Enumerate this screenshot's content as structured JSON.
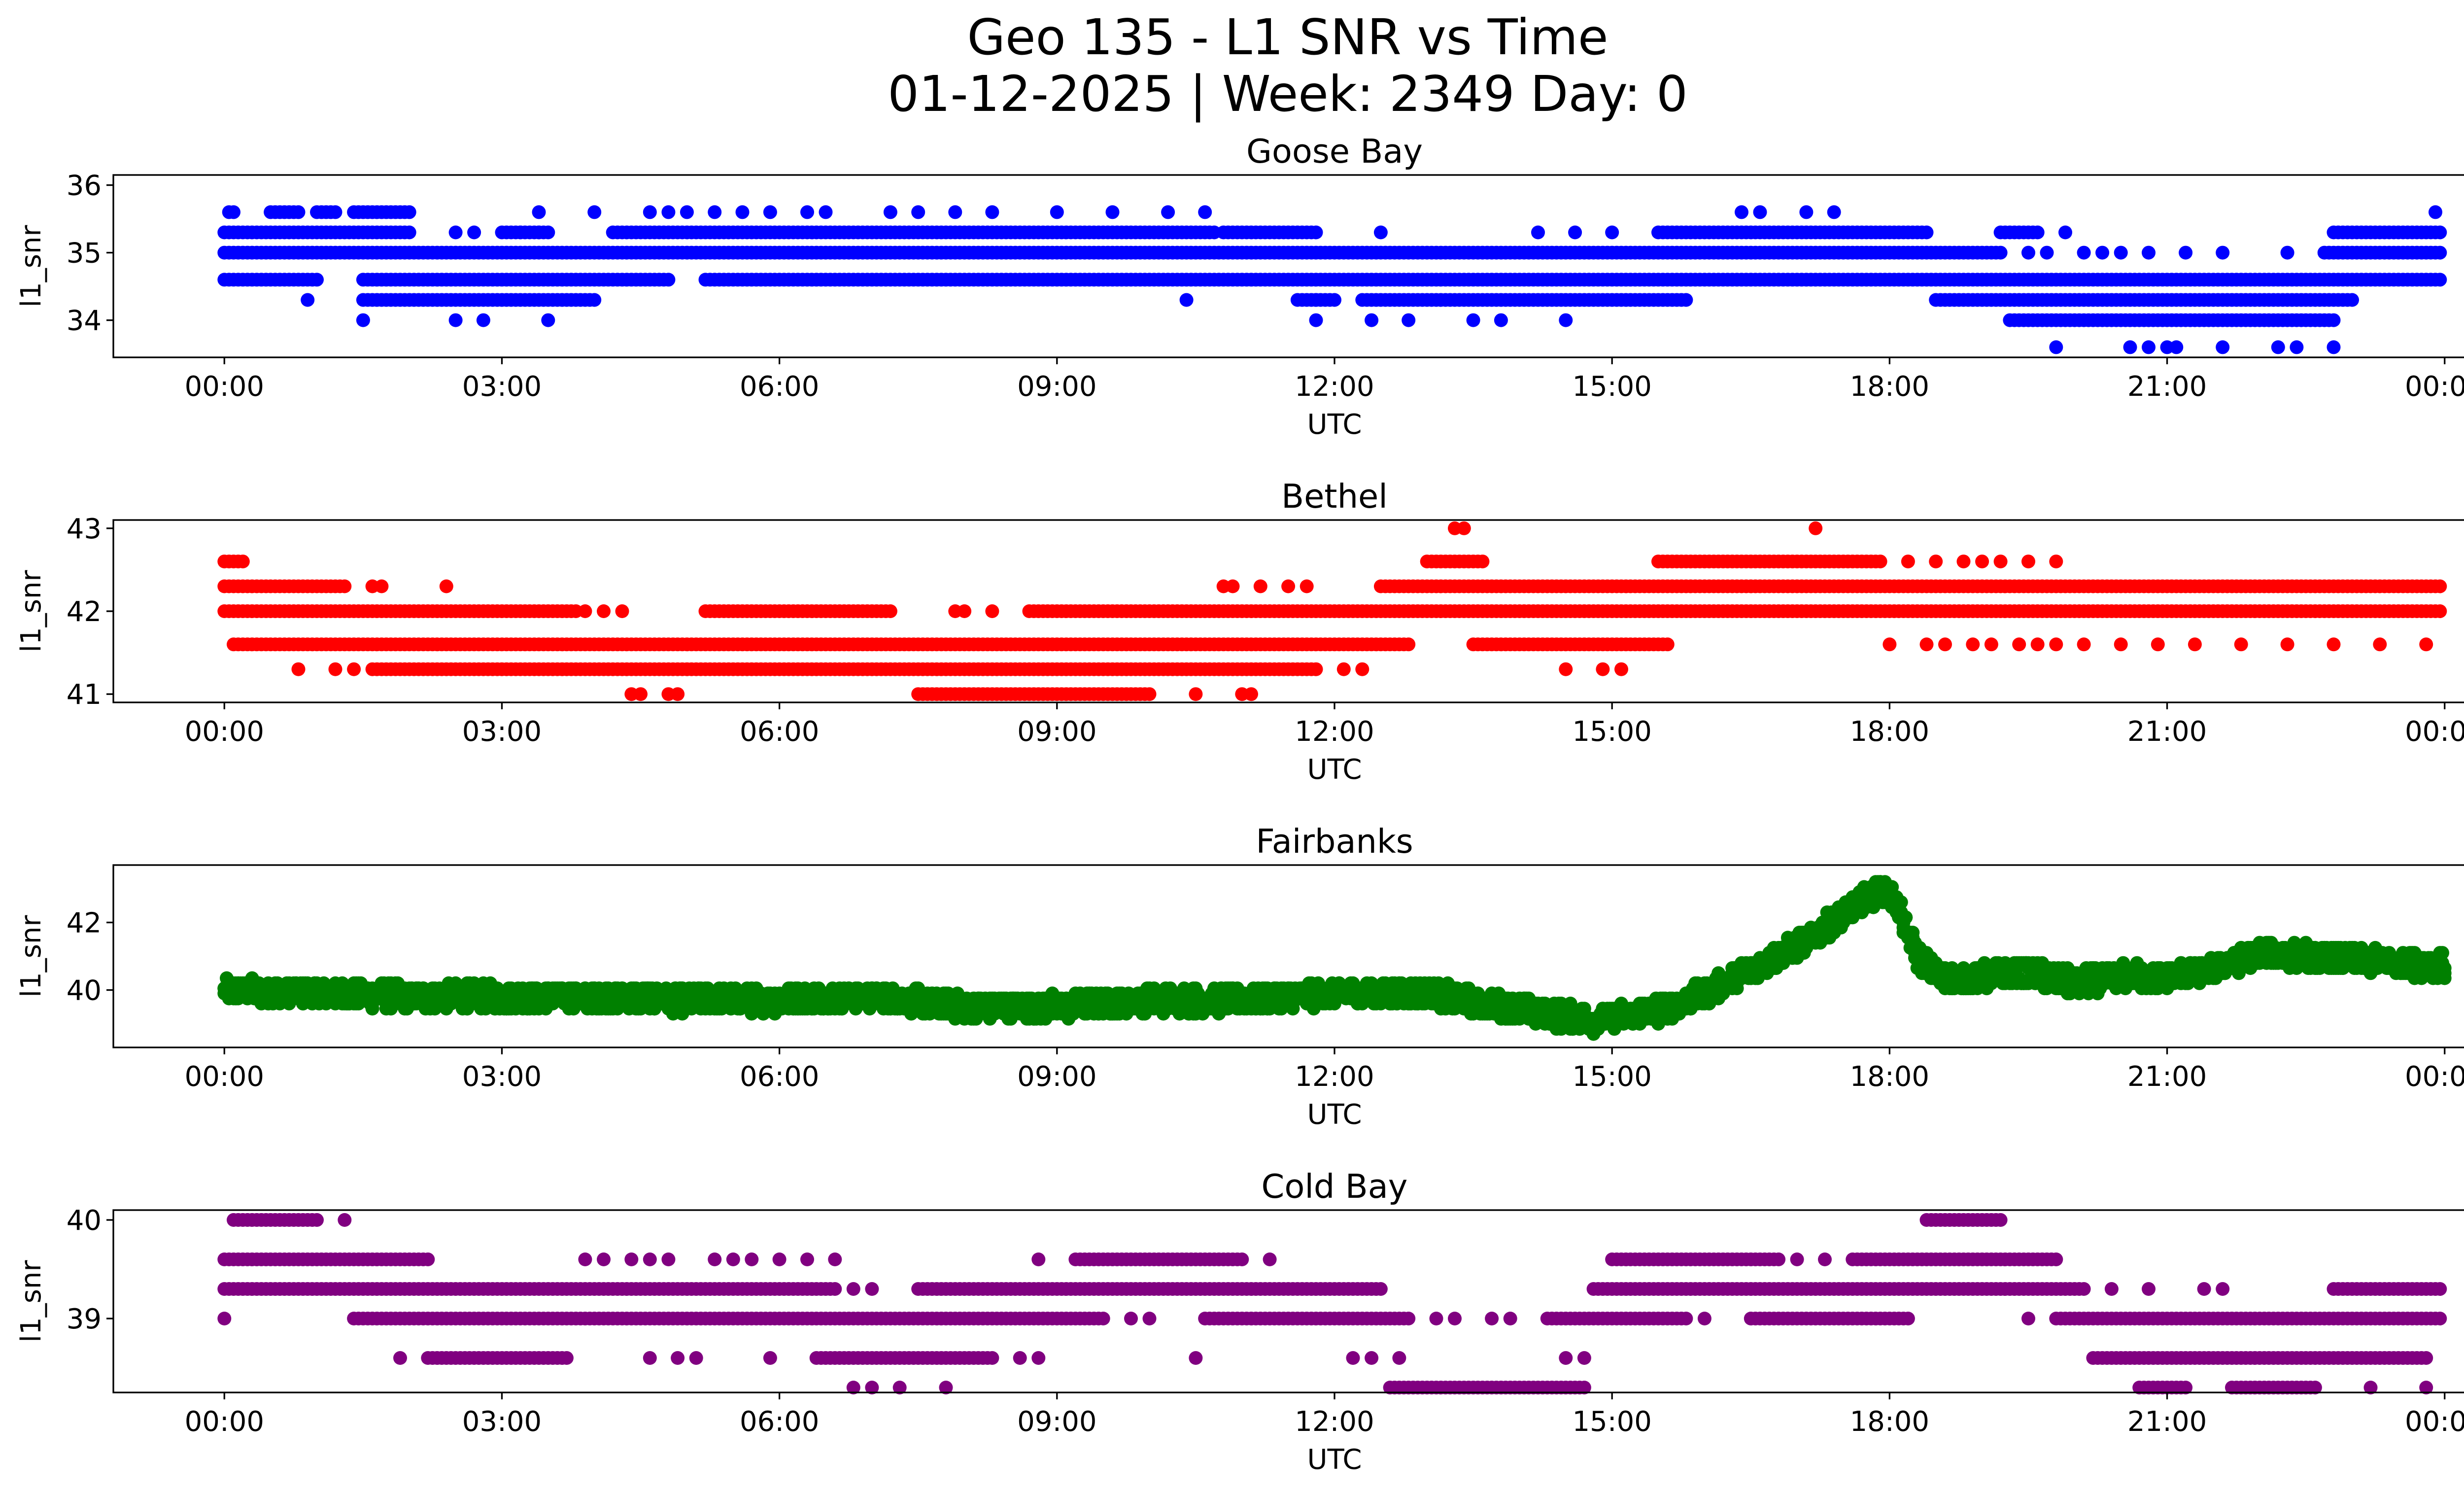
{
  "chart_data": [
    {
      "type": "scatter",
      "figure_title_line1": "Geo 135 - L1 SNR vs Time",
      "figure_title_line2": "01-12-2025 | Week: 2349 Day: 0",
      "title": "Goose Bay",
      "xlabel": "UTC",
      "ylabel": "l1_snr",
      "xlim_hours": [
        -1.2,
        25.2
      ],
      "ylim": [
        33.45,
        36.15
      ],
      "xticks": [
        0,
        3,
        6,
        9,
        12,
        15,
        18,
        21,
        24
      ],
      "xtick_labels": [
        "00:00",
        "03:00",
        "06:00",
        "09:00",
        "12:00",
        "15:00",
        "18:00",
        "21:00",
        "00:00"
      ],
      "yticks": [
        34,
        35,
        36
      ],
      "ytick_labels": [
        "34",
        "35",
        "36"
      ],
      "color": "#0000ff",
      "series": [
        {
          "level": 35.6,
          "segments": [
            [
              0.05,
              0.1
            ],
            [
              0.5,
              0.8
            ],
            [
              1.0,
              1.2
            ],
            [
              1.4,
              2.0
            ]
          ],
          "stray": [
            3.4,
            4.0,
            4.6,
            4.8,
            5.0,
            5.3,
            5.6,
            5.9,
            6.3,
            6.5,
            7.2,
            7.5,
            7.9,
            8.3,
            9.0,
            9.6,
            10.2,
            10.6,
            16.4,
            16.6,
            17.1,
            17.4,
            23.9
          ]
        },
        {
          "level": 35.3,
          "segments": [
            [
              0.0,
              2.0
            ],
            [
              3.0,
              3.5
            ],
            [
              4.2,
              10.7
            ],
            [
              10.8,
              11.8
            ],
            [
              15.5,
              18.4
            ],
            [
              19.2,
              19.6
            ],
            [
              22.8,
              24.0
            ]
          ],
          "stray": [
            2.5,
            2.7,
            3.2,
            3.4,
            12.5,
            14.2,
            14.6,
            15.0,
            19.9
          ]
        },
        {
          "level": 35.0,
          "segments": [
            [
              0.0,
              19.2
            ],
            [
              22.7,
              24.0
            ]
          ],
          "stray": [
            19.5,
            19.7,
            20.1,
            20.3,
            20.5,
            20.8,
            21.2,
            21.6,
            22.3
          ]
        },
        {
          "level": 34.6,
          "segments": [
            [
              0.0,
              1.0
            ],
            [
              1.5,
              4.8
            ],
            [
              5.2,
              24.0
            ]
          ],
          "stray": []
        },
        {
          "level": 34.3,
          "segments": [
            [
              1.5,
              4.0
            ],
            [
              11.6,
              12.0
            ],
            [
              12.3,
              15.8
            ],
            [
              18.5,
              23.0
            ]
          ],
          "stray": [
            0.9,
            10.4,
            11.8
          ]
        },
        {
          "level": 34.0,
          "segments": [
            [
              19.3,
              22.8
            ]
          ],
          "stray": [
            1.5,
            2.5,
            2.8,
            3.5,
            11.8,
            12.4,
            12.8,
            13.5,
            13.8,
            14.5
          ]
        },
        {
          "level": 33.6,
          "segments": [],
          "stray": [
            19.8,
            20.6,
            20.8,
            21.0,
            21.1,
            21.6,
            22.2,
            22.4,
            22.8
          ]
        }
      ]
    },
    {
      "type": "scatter",
      "title": "Bethel",
      "xlabel": "UTC",
      "ylabel": "l1_snr",
      "xlim_hours": [
        -1.2,
        25.2
      ],
      "ylim": [
        40.9,
        43.1
      ],
      "xticks": [
        0,
        3,
        6,
        9,
        12,
        15,
        18,
        21,
        24
      ],
      "xtick_labels": [
        "00:00",
        "03:00",
        "06:00",
        "09:00",
        "12:00",
        "15:00",
        "18:00",
        "21:00",
        "00:00"
      ],
      "yticks": [
        41,
        42,
        43
      ],
      "ytick_labels": [
        "41",
        "42",
        "43"
      ],
      "color": "#ff0000",
      "series": [
        {
          "level": 43.0,
          "segments": [],
          "stray": [
            13.3,
            13.4,
            17.2
          ]
        },
        {
          "level": 42.6,
          "segments": [
            [
              0.0,
              0.2
            ],
            [
              13.0,
              13.6
            ],
            [
              15.5,
              17.9
            ]
          ],
          "stray": [
            18.2,
            18.5,
            18.8,
            19.0,
            19.2,
            19.5,
            19.8
          ]
        },
        {
          "level": 42.3,
          "segments": [
            [
              0.0,
              1.3
            ],
            [
              12.5,
              24.0
            ]
          ],
          "stray": [
            1.6,
            1.7,
            2.4,
            10.8,
            10.9,
            11.2,
            11.5,
            11.7
          ]
        },
        {
          "level": 42.0,
          "segments": [
            [
              0.0,
              3.8
            ],
            [
              5.2,
              7.2
            ],
            [
              8.7,
              24.0
            ]
          ],
          "stray": [
            3.9,
            4.1,
            4.3,
            7.9,
            8.0,
            8.3
          ]
        },
        {
          "level": 41.6,
          "segments": [
            [
              0.1,
              12.8
            ],
            [
              13.5,
              15.6
            ]
          ],
          "stray": [
            18.0,
            18.4,
            18.6,
            18.9,
            19.1,
            19.4,
            19.6,
            19.8,
            20.1,
            20.5,
            20.9,
            21.3,
            21.8,
            22.3,
            22.8,
            23.3,
            23.8
          ]
        },
        {
          "level": 41.3,
          "segments": [
            [
              1.6,
              11.8
            ]
          ],
          "stray": [
            0.8,
            1.2,
            1.4,
            12.1,
            12.3,
            14.5,
            14.9,
            15.1
          ]
        },
        {
          "level": 41.0,
          "segments": [
            [
              7.5,
              10.0
            ]
          ],
          "stray": [
            4.4,
            4.5,
            4.8,
            4.9,
            10.5,
            11.0,
            11.1
          ]
        }
      ]
    },
    {
      "type": "line",
      "title": "Fairbanks",
      "xlabel": "UTC",
      "ylabel": "l1_snr",
      "xlim_hours": [
        -1.2,
        25.2
      ],
      "ylim": [
        38.3,
        43.7
      ],
      "xticks": [
        0,
        3,
        6,
        9,
        12,
        15,
        18,
        21,
        24
      ],
      "xtick_labels": [
        "00:00",
        "03:00",
        "06:00",
        "09:00",
        "12:00",
        "15:00",
        "18:00",
        "21:00",
        "00:00"
      ],
      "yticks": [
        40,
        42
      ],
      "ytick_labels": [
        "40",
        "42"
      ],
      "color": "#008000",
      "trend": [
        [
          0,
          40.0
        ],
        [
          1,
          39.9
        ],
        [
          2,
          39.8
        ],
        [
          3,
          39.8
        ],
        [
          4,
          39.8
        ],
        [
          5,
          39.7
        ],
        [
          6,
          39.7
        ],
        [
          7,
          39.8
        ],
        [
          8,
          39.5
        ],
        [
          9,
          39.5
        ],
        [
          10,
          39.7
        ],
        [
          11,
          39.7
        ],
        [
          12,
          39.9
        ],
        [
          13,
          39.9
        ],
        [
          14,
          39.4
        ],
        [
          14.8,
          39.1
        ],
        [
          15.5,
          39.4
        ],
        [
          16,
          39.9
        ],
        [
          16.5,
          40.6
        ],
        [
          17,
          41.3
        ],
        [
          17.5,
          42.2
        ],
        [
          17.9,
          43.0
        ],
        [
          18.05,
          42.7
        ],
        [
          18.3,
          41.0
        ],
        [
          18.6,
          40.3
        ],
        [
          19,
          40.4
        ],
        [
          19.5,
          40.5
        ],
        [
          20,
          40.2
        ],
        [
          20.5,
          40.4
        ],
        [
          21,
          40.4
        ],
        [
          21.5,
          40.6
        ],
        [
          22,
          41.1
        ],
        [
          22.5,
          41.0
        ],
        [
          23,
          40.9
        ],
        [
          24,
          40.7
        ]
      ],
      "spread": 0.35
    },
    {
      "type": "scatter",
      "title": "Cold Bay",
      "xlabel": "UTC",
      "ylabel": "l1_snr",
      "xlim_hours": [
        -1.2,
        25.2
      ],
      "ylim": [
        38.25,
        40.1
      ],
      "xticks": [
        0,
        3,
        6,
        9,
        12,
        15,
        18,
        21,
        24
      ],
      "xtick_labels": [
        "00:00",
        "03:00",
        "06:00",
        "09:00",
        "12:00",
        "15:00",
        "18:00",
        "21:00",
        "00:00"
      ],
      "yticks": [
        39,
        40
      ],
      "ytick_labels": [
        "39",
        "40"
      ],
      "color": "#800080",
      "series": [
        {
          "level": 40.0,
          "segments": [
            [
              0.1,
              1.0
            ],
            [
              18.4,
              19.2
            ]
          ],
          "stray": [
            1.3
          ]
        },
        {
          "level": 39.6,
          "segments": [
            [
              0.0,
              2.2
            ],
            [
              15.0,
              16.8
            ],
            [
              17.6,
              19.8
            ],
            [
              9.2,
              11.0
            ]
          ],
          "stray": [
            3.9,
            4.1,
            4.4,
            4.6,
            4.8,
            5.3,
            5.5,
            5.7,
            6.0,
            6.3,
            6.6,
            8.8,
            11.3,
            17.0,
            17.3
          ]
        },
        {
          "level": 39.3,
          "segments": [
            [
              0.0,
              6.6
            ],
            [
              7.5,
              12.5
            ],
            [
              14.8,
              20.1
            ],
            [
              22.8,
              24.0
            ]
          ],
          "stray": [
            6.8,
            7.0,
            20.4,
            20.8,
            21.4,
            21.6
          ]
        },
        {
          "level": 39.0,
          "segments": [
            [
              1.4,
              9.5
            ],
            [
              10.6,
              12.8
            ],
            [
              14.3,
              15.8
            ],
            [
              16.5,
              18.2
            ],
            [
              19.8,
              24.0
            ]
          ],
          "stray": [
            0.0,
            9.8,
            10.0,
            13.1,
            13.3,
            13.7,
            13.9,
            16.0,
            19.5
          ]
        },
        {
          "level": 38.6,
          "segments": [
            [
              2.2,
              3.7
            ],
            [
              6.4,
              8.3
            ],
            [
              20.2,
              23.8
            ]
          ],
          "stray": [
            1.9,
            4.6,
            4.9,
            5.1,
            5.9,
            8.6,
            8.8,
            10.5,
            12.2,
            12.4,
            12.7,
            14.5,
            14.7
          ]
        },
        {
          "level": 38.3,
          "segments": [
            [
              12.6,
              14.7
            ],
            [
              20.7,
              21.2
            ],
            [
              21.7,
              22.6
            ]
          ],
          "stray": [
            6.8,
            7.0,
            7.3,
            7.8,
            23.2,
            23.8
          ]
        }
      ]
    }
  ]
}
